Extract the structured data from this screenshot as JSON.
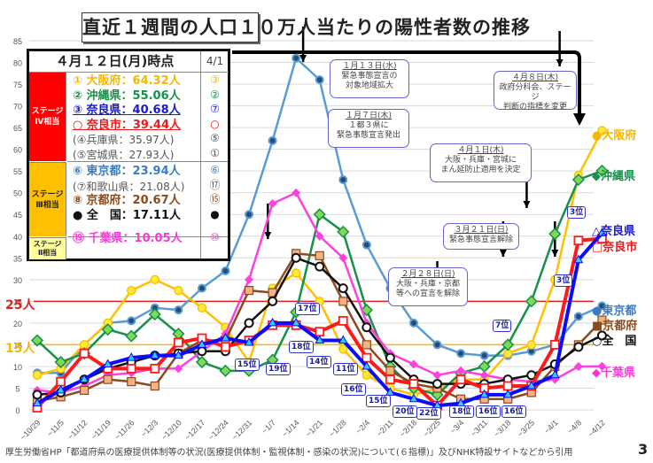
{
  "title": "直近１週間の人口１０万人当たりの陽性者数の推移",
  "legend_table": {
    "header": "４月１２日(月)時点",
    "header_prev": "4/1",
    "stage4_label": "ステージ\nⅣ相当",
    "stage3_label": "ステージ\nⅢ相当",
    "stage2_label": "ステージ\nⅡ相当",
    "rows": [
      {
        "text": "① 大阪府：64.32人",
        "prev": "③",
        "color": "#f5b800",
        "style": "b"
      },
      {
        "text": "② 沖縄県：55.06人",
        "prev": "②",
        "color": "#16904a",
        "style": "b"
      },
      {
        "text": "③ 奈良県：40.68人",
        "prev": "⑦",
        "color": "#1a1acc",
        "style": "b u"
      },
      {
        "text": "○ 奈良市：39.44人",
        "prev": "○",
        "color": "#e81c1c",
        "style": "b u"
      },
      {
        "text": "(④兵庫県：35.97人)",
        "prev": "⑤",
        "color": "#555555",
        "style": "s"
      },
      {
        "text": "(⑤宮城県：27.93人)",
        "prev": "①",
        "color": "#555555",
        "style": "s"
      },
      {
        "text": "⑥ 東京都：23.94人",
        "prev": "⑥",
        "color": "#3a7cc4",
        "style": "b"
      },
      {
        "text": "(⑦和歌山県：21.08人)",
        "prev": "⑰",
        "color": "#555555",
        "style": "s"
      },
      {
        "text": "⑧ 京都府：20.67人",
        "prev": "⑮",
        "color": "#8a4b1e",
        "style": "b"
      },
      {
        "text": "● 全　国：17.11人",
        "prev": "●",
        "color": "#111111",
        "style": "b"
      },
      {
        "text": "⑲ 千葉県：10.05人",
        "prev": "⑩",
        "color": "#ff33dd",
        "style": "b"
      }
    ]
  },
  "callouts": [
    {
      "date": "１月１３日(水)",
      "text": "緊急事態宣言の\n対象地域拡大"
    },
    {
      "date": "１月７日(木)",
      "text": "１都３県に\n緊急事態宣言発出"
    },
    {
      "date": "４月８日(木)",
      "text": "政府分科会、ステージ\n判断の指標を変更"
    },
    {
      "date": "４月１日(木)",
      "text": "大阪・兵庫・宮城に\nまん延防止適用を決定"
    },
    {
      "date": "３月２１日(日)",
      "text": "緊急事態宣言解除"
    },
    {
      "date": "２月２８日(日)",
      "text": "大阪・兵庫・京都\n等への宣言を解除"
    }
  ],
  "rank_tags": [
    "17位",
    "18位",
    "15位",
    "19位",
    "14位",
    "11位",
    "16位",
    "15位",
    "20位",
    "22位",
    "18位",
    "16位",
    "16位",
    "7位",
    "3位",
    "3位"
  ],
  "threshold_labels": {
    "stage4": "25人",
    "stage3": "15人"
  },
  "right_labels": [
    {
      "text": "●大阪府",
      "color": "#f5b800"
    },
    {
      "text": "◆沖縄県",
      "color": "#16904a"
    },
    {
      "text": "△奈良県",
      "color": "#1a1acc"
    },
    {
      "text": "□奈良市",
      "color": "#e81c1c"
    },
    {
      "text": "●東京都",
      "color": "#3a7cc4"
    },
    {
      "text": "■京都府",
      "color": "#8a4b1e"
    },
    {
      "text": "○全　国",
      "color": "#111111"
    },
    {
      "text": "◆千葉県",
      "color": "#ff33dd"
    }
  ],
  "footer": "厚生労働省HP「都道府県の医療提供体制等の状況(医療提供体制・監視体制・感染の状況)について(６指標)」及びNHK特設サイトなどから引用",
  "page_number": "3",
  "chart_data": {
    "type": "line",
    "title": "直近１週間の人口１０万人当たりの陽性者数の推移",
    "xlabel": "",
    "ylabel": "",
    "ylim": [
      0,
      85
    ],
    "yticks": [
      0,
      5,
      10,
      15,
      20,
      25,
      30,
      35,
      40,
      45,
      50,
      55,
      60,
      65,
      70,
      75,
      80,
      85
    ],
    "grid": true,
    "categories": [
      "~10/29",
      "~11/5",
      "~11/12",
      "~11/19",
      "~11/26",
      "~12/3",
      "~12/10",
      "~12/17",
      "~12/24",
      "~12/31",
      "~1/7",
      "~1/14",
      "~1/21",
      "~1/28",
      "~2/4",
      "~2/11",
      "~2/18",
      "~2/25",
      "~3/4",
      "~3/11",
      "~3/18",
      "~3/25",
      "~4/1",
      "~4/8",
      "~4/12"
    ],
    "thresholds": [
      {
        "name": "25人",
        "value": 25,
        "color": "#e02020"
      },
      {
        "name": "15人",
        "value": 15,
        "color": "#f5b800"
      }
    ],
    "series": [
      {
        "name": "東京都",
        "color": "#5b9bd5",
        "marker": "dot",
        "values": [
          8.5,
          8.5,
          15,
          20,
          20.5,
          23.5,
          23,
          28,
          32,
          45,
          62,
          81,
          76,
          53,
          38,
          28,
          20,
          15,
          13,
          12.5,
          12.5,
          13.5,
          15,
          21.5,
          23.94
        ]
      },
      {
        "name": "大阪府",
        "color": "#ffc000",
        "marker": "circle-yellow",
        "values": [
          8,
          9.5,
          15,
          20,
          27.5,
          30,
          27.5,
          23.5,
          19,
          11,
          28,
          31.5,
          25,
          14,
          8,
          5,
          3.5,
          5,
          7,
          7,
          13,
          15,
          30,
          54,
          64.32
        ]
      },
      {
        "name": "沖縄県",
        "color": "#16904a",
        "marker": "diamond-green",
        "values": [
          16,
          11,
          13,
          18.5,
          17,
          22,
          17.5,
          11,
          9,
          9,
          11.5,
          22.5,
          45,
          41,
          23,
          10,
          5,
          3.5,
          8.5,
          10,
          15,
          25,
          40.5,
          53,
          55.06
        ]
      },
      {
        "name": "千葉県",
        "color": "#ff40e0",
        "marker": "diamond-pink",
        "values": [
          4.5,
          4,
          5.5,
          8,
          8.5,
          9.5,
          9.5,
          13.5,
          17.5,
          30,
          47.5,
          50,
          40,
          35,
          20,
          13,
          10.5,
          8,
          9,
          8,
          7,
          6.5,
          7,
          10,
          10.05
        ]
      },
      {
        "name": "京都府",
        "color": "#8a4b1e",
        "marker": "square-brown",
        "values": [
          2,
          3,
          4.5,
          7,
          6.5,
          5.5,
          13,
          16,
          16,
          27.5,
          27,
          36,
          35.5,
          25,
          15,
          9,
          6,
          5,
          2.5,
          2.5,
          2.5,
          4,
          10,
          15,
          20.67
        ]
      },
      {
        "name": "全国",
        "color": "#111111",
        "marker": "circle-open",
        "values": [
          3.5,
          4,
          7,
          9.5,
          11,
          12.5,
          13,
          13.5,
          13.5,
          20,
          25,
          35,
          33,
          28,
          19,
          12,
          7,
          6,
          6,
          6,
          7,
          8,
          10.5,
          14.5,
          17.11
        ]
      },
      {
        "name": "奈良市",
        "color": "#ff1a1a",
        "marker": "square-open",
        "values": [
          0.5,
          6.5,
          13,
          9.5,
          9.5,
          9.5,
          15.5,
          16.5,
          14.5,
          16,
          19.5,
          19.5,
          18,
          20.5,
          12,
          7,
          6,
          1,
          7,
          5,
          5.5,
          5.5,
          15,
          39,
          39.44
        ]
      },
      {
        "name": "奈良県",
        "color": "#0a0aff",
        "marker": "triangle",
        "values": [
          1.5,
          4.5,
          7,
          10.5,
          12,
          12.5,
          12.5,
          15,
          16.5,
          15.5,
          20,
          20,
          16,
          16,
          10,
          4,
          2.5,
          1,
          1.5,
          3.5,
          3.5,
          5.5,
          8,
          34.5,
          40.68
        ]
      }
    ]
  }
}
